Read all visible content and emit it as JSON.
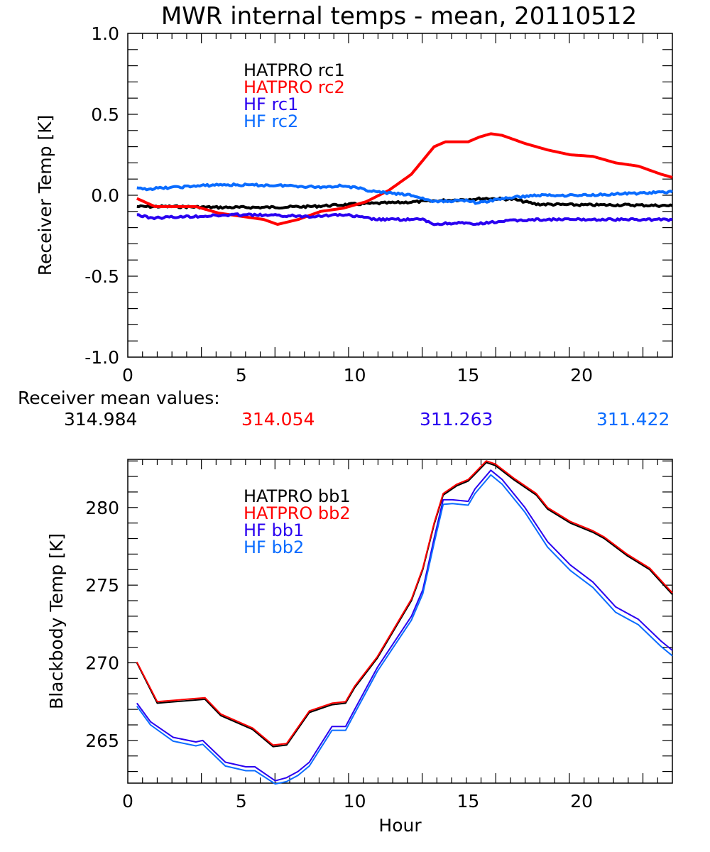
{
  "title": "MWR internal temps - mean, 20110512",
  "receiver_means": {
    "label": "Receiver mean values:",
    "values": [
      {
        "text": "314.984",
        "color": "#000000"
      },
      {
        "text": "314.054",
        "color": "#ff0000"
      },
      {
        "text": "311.263",
        "color": "#2a00f0"
      },
      {
        "text": "311.422",
        "color": "#0a6cff"
      }
    ]
  },
  "chart_data": [
    {
      "type": "line",
      "ylabel": "Receiver Temp [K]",
      "xlabel": "",
      "xlim": [
        0,
        24
      ],
      "ylim": [
        -1.0,
        1.0
      ],
      "xticks": [
        "0",
        "5",
        "10",
        "15",
        "20"
      ],
      "yticks": [
        "-1.0",
        "-0.5",
        "0.0",
        "0.5",
        "1.0"
      ],
      "legend": "top-left",
      "series": [
        {
          "name": "HATPRO rc1",
          "color": "#000000",
          "x": [
            0.4,
            2,
            4,
            6,
            8,
            10,
            12,
            13.5,
            15,
            15.8,
            17,
            18,
            20,
            22,
            24
          ],
          "y": [
            -0.07,
            -0.07,
            -0.075,
            -0.075,
            -0.07,
            -0.055,
            -0.045,
            -0.035,
            -0.025,
            -0.02,
            -0.025,
            -0.055,
            -0.06,
            -0.06,
            -0.065
          ]
        },
        {
          "name": "HATPRO rc2",
          "color": "#ff0000",
          "x": [
            0.4,
            1.2,
            3,
            4,
            6,
            6.6,
            7.5,
            8.5,
            9.5,
            10.5,
            11.5,
            12.5,
            13.5,
            14,
            15,
            15.5,
            16,
            16.5,
            17.5,
            18.5,
            19.5,
            20.5,
            21.5,
            22.5,
            23.5,
            24
          ],
          "y": [
            -0.02,
            -0.07,
            -0.07,
            -0.11,
            -0.15,
            -0.18,
            -0.15,
            -0.1,
            -0.08,
            -0.04,
            0.03,
            0.13,
            0.3,
            0.33,
            0.33,
            0.36,
            0.38,
            0.37,
            0.32,
            0.28,
            0.25,
            0.24,
            0.2,
            0.18,
            0.13,
            0.11
          ]
        },
        {
          "name": "HF rc1",
          "color": "#2a00f0",
          "x": [
            0.4,
            1,
            3,
            5,
            8,
            9.5,
            11,
            13,
            13.5,
            14.5,
            15.3,
            16.5,
            18,
            21,
            24
          ],
          "y": [
            -0.12,
            -0.14,
            -0.13,
            -0.12,
            -0.13,
            -0.12,
            -0.15,
            -0.15,
            -0.18,
            -0.17,
            -0.18,
            -0.16,
            -0.15,
            -0.15,
            -0.15
          ]
        },
        {
          "name": "HF rc2",
          "color": "#0a6cff",
          "x": [
            0.4,
            1,
            4,
            7,
            8.5,
            9.5,
            11,
            12.5,
            13.5,
            15,
            15.4,
            16.5,
            18,
            20,
            22,
            24
          ],
          "y": [
            0.04,
            0.04,
            0.065,
            0.06,
            0.05,
            0.06,
            0.02,
            0.0,
            -0.04,
            -0.03,
            -0.05,
            -0.02,
            0.0,
            0.0,
            0.01,
            0.02
          ]
        }
      ]
    },
    {
      "type": "line",
      "ylabel": "Blackbody Temp [K]",
      "xlabel": "Hour",
      "xlim": [
        0,
        24
      ],
      "ylim": [
        262.25,
        283.1
      ],
      "xticks": [
        "0",
        "5",
        "10",
        "15",
        "20"
      ],
      "yticks": [
        "265",
        "270",
        "275",
        "280"
      ],
      "legend": "top-left",
      "series": [
        {
          "name": "HATPRO bb1",
          "color": "#000000",
          "x": [
            0.4,
            1.3,
            3.4,
            4.1,
            5.5,
            6.4,
            7,
            8,
            9,
            9.6,
            10,
            11,
            12.5,
            13,
            13.5,
            13.9,
            14.5,
            15,
            15.2,
            15.8,
            16.2,
            17,
            18,
            18.5,
            19.5,
            20.5,
            21,
            22,
            23,
            24
          ],
          "y": [
            270.0,
            267.4,
            267.65,
            266.6,
            265.7,
            264.6,
            264.7,
            266.8,
            267.3,
            267.4,
            268.4,
            270.3,
            274.0,
            276.0,
            278.9,
            280.8,
            281.4,
            281.7,
            282.0,
            282.9,
            282.7,
            281.8,
            280.8,
            279.9,
            279.0,
            278.4,
            278.0,
            276.9,
            276.0,
            274.4
          ]
        },
        {
          "name": "HATPRO bb2",
          "color": "#ff0000",
          "x": [
            0.4,
            1.3,
            3.4,
            4.1,
            5.5,
            6.4,
            7,
            8,
            9,
            9.6,
            10,
            11,
            12.5,
            13,
            13.5,
            13.9,
            14.5,
            15,
            15.2,
            15.8,
            16.2,
            17,
            18,
            18.5,
            19.5,
            20.5,
            21,
            22,
            23,
            24
          ],
          "y": [
            270.05,
            267.5,
            267.75,
            266.7,
            265.8,
            264.7,
            264.8,
            266.9,
            267.4,
            267.5,
            268.5,
            270.4,
            274.1,
            276.1,
            279.0,
            280.9,
            281.5,
            281.8,
            282.1,
            283.0,
            282.8,
            281.9,
            280.9,
            280.0,
            279.1,
            278.5,
            278.1,
            277.0,
            276.1,
            274.5
          ]
        },
        {
          "name": "HF bb1",
          "color": "#2a00f0",
          "x": [
            0.4,
            1,
            2,
            3,
            3.3,
            4.3,
            5.2,
            5.6,
            6.5,
            7,
            7.5,
            8,
            9,
            9.6,
            10,
            11,
            12.5,
            13,
            13.5,
            13.9,
            14.3,
            15,
            15.3,
            16,
            16.5,
            17.5,
            18.5,
            19.5,
            20.5,
            21.5,
            22.5,
            23.5,
            24
          ],
          "y": [
            267.4,
            266.2,
            265.2,
            264.9,
            265.0,
            263.6,
            263.3,
            263.3,
            262.4,
            262.6,
            263.0,
            263.6,
            265.9,
            265.9,
            267.0,
            269.7,
            273.0,
            274.7,
            278.0,
            280.5,
            280.5,
            280.4,
            281.2,
            282.4,
            281.8,
            280.0,
            277.8,
            276.3,
            275.2,
            273.6,
            272.8,
            271.4,
            270.8
          ]
        },
        {
          "name": "HF bb2",
          "color": "#0a6cff",
          "x": [
            0.4,
            1,
            2,
            3,
            3.3,
            4.3,
            5.2,
            5.6,
            6.5,
            7,
            7.5,
            8,
            9,
            9.6,
            10,
            11,
            12.5,
            13,
            13.5,
            13.9,
            14.3,
            15,
            15.3,
            16,
            16.5,
            17.5,
            18.5,
            19.5,
            20.5,
            21.5,
            22.5,
            23.5,
            24
          ],
          "y": [
            267.2,
            266.0,
            264.95,
            264.65,
            264.75,
            263.35,
            263.05,
            263.05,
            262.2,
            262.35,
            262.75,
            263.35,
            265.65,
            265.65,
            266.75,
            269.45,
            272.75,
            274.45,
            277.7,
            280.2,
            280.25,
            280.15,
            280.9,
            282.1,
            281.5,
            279.7,
            277.45,
            275.95,
            274.85,
            273.25,
            272.45,
            271.05,
            270.45
          ]
        }
      ]
    }
  ]
}
